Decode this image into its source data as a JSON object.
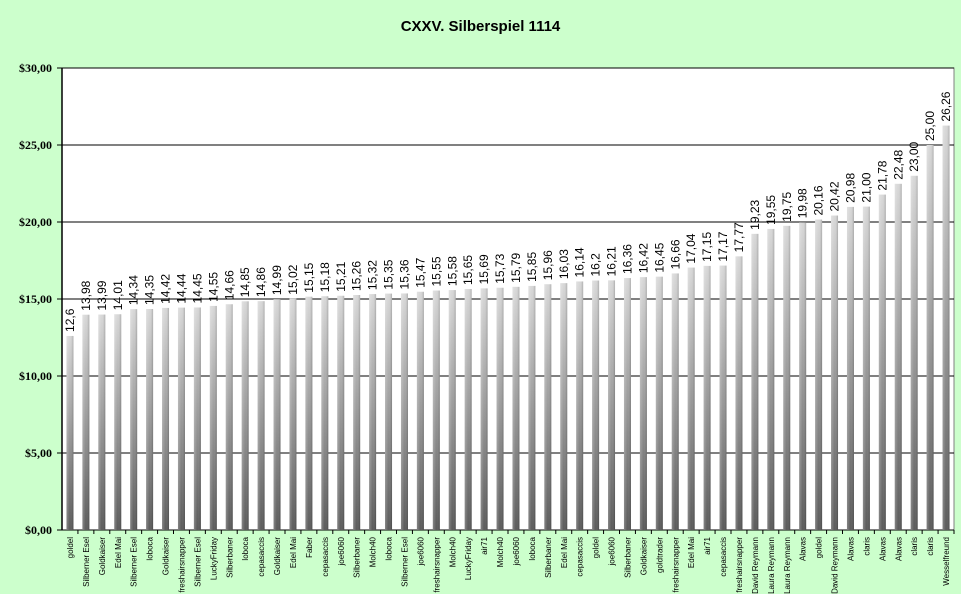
{
  "chart_data": {
    "type": "bar",
    "title": "CXXV. Silberspiel 1114",
    "xlabel": "",
    "ylabel": "",
    "ylim": [
      0,
      30
    ],
    "yticks": [
      "$0,00",
      "$5,00",
      "$10,00",
      "$15,00",
      "$20,00",
      "$25,00",
      "$30,00"
    ],
    "grid": true,
    "legend": "none",
    "colors": {
      "background": "#ccffcc",
      "plot": "#ffffff",
      "bar_light": "#d8d8d8",
      "bar_dark": "#5a5a5a"
    },
    "categories": [
      "goldel",
      "Silberner Esel",
      "Goldkaiser",
      "Edel Mai",
      "Silberner Esel",
      "loboca",
      "Goldkaiser",
      "freshairsnapper",
      "Silberner Esel",
      "LuckyFriday",
      "Silberbaner",
      "loboca",
      "cepasaccis",
      "Goldkaiser",
      "Edel Mai",
      "Faber",
      "cepasaccis",
      "joe6060",
      "Silberbaner",
      "Molch40",
      "loboca",
      "Silberner Esel",
      "joe6060",
      "freshairsnapper",
      "Molch40",
      "LuckyFriday",
      "air71",
      "Molch40",
      "joe6060",
      "loboca",
      "Silberbaner",
      "Edel Mai",
      "cepasaccis",
      "goldel",
      "joe6060",
      "Silberbaner",
      "Goldkaiser",
      "goldtrader",
      "freshairsnapper",
      "Edel Mai",
      "air71",
      "cepasaccis",
      "freshairsnapper",
      "David Reymann",
      "Laura Reymann",
      "Laura Reymann",
      "Alavas",
      "goldel",
      "David Reymann",
      "Alavas",
      "claris",
      "Alavas",
      "Alavas",
      "claris",
      "claris",
      "Wesselfreund"
    ],
    "values": [
      12.6,
      13.98,
      13.99,
      14.01,
      14.34,
      14.35,
      14.42,
      14.44,
      14.45,
      14.55,
      14.66,
      14.85,
      14.86,
      14.99,
      15.02,
      15.15,
      15.18,
      15.21,
      15.26,
      15.32,
      15.35,
      15.36,
      15.47,
      15.55,
      15.58,
      15.65,
      15.69,
      15.73,
      15.79,
      15.85,
      15.96,
      16.03,
      16.14,
      16.2,
      16.21,
      16.36,
      16.42,
      16.45,
      16.66,
      17.04,
      17.15,
      17.17,
      17.77,
      19.23,
      19.55,
      19.75,
      19.98,
      20.16,
      20.42,
      20.98,
      21.0,
      21.78,
      22.48,
      23.0,
      25.0,
      26.26
    ],
    "data_labels": [
      "12,6",
      "13,98",
      "13,99",
      "14,01",
      "14,34",
      "14,35",
      "14,42",
      "14,44",
      "14,45",
      "14,55",
      "14,66",
      "14,85",
      "14,86",
      "14,99",
      "15,02",
      "15,15",
      "15,18",
      "15,21",
      "15,26",
      "15,32",
      "15,35",
      "15,36",
      "15,47",
      "15,55",
      "15,58",
      "15,65",
      "15,69",
      "15,73",
      "15,79",
      "15,85",
      "15,96",
      "16,03",
      "16,14",
      "16,2",
      "16,21",
      "16,36",
      "16,42",
      "16,45",
      "16,66",
      "17,04",
      "17,15",
      "17,17",
      "17,77",
      "19,23",
      "19,55",
      "19,75",
      "19,98",
      "20,16",
      "20,42",
      "20,98",
      "21,00",
      "21,78",
      "22,48",
      "23,00",
      "25,00",
      "26,26"
    ]
  }
}
